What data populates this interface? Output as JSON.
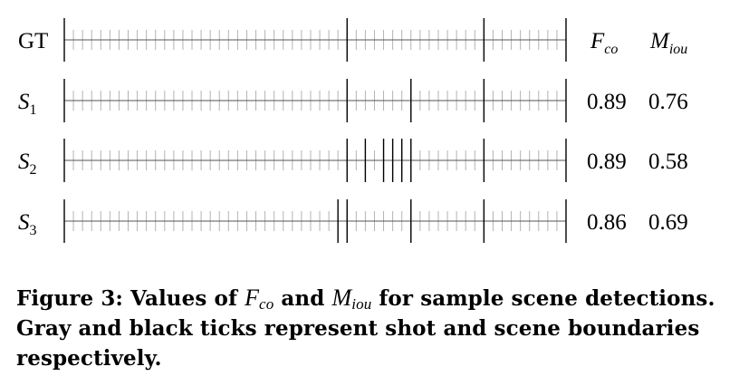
{
  "rows": [
    {
      "label": "GT",
      "label_base": "GT",
      "label_sub": "",
      "shots": 55,
      "scenes": [
        0,
        31,
        46,
        55
      ],
      "values": null
    },
    {
      "label": "S1",
      "label_base": "S",
      "label_sub": "1",
      "shots": 55,
      "scenes": [
        0,
        31,
        38,
        46,
        55
      ],
      "values": [
        "0.89",
        "0.76"
      ]
    },
    {
      "label": "S2",
      "label_base": "S",
      "label_sub": "2",
      "shots": 55,
      "scenes": [
        0,
        31,
        33,
        35,
        36,
        37,
        38,
        46,
        55
      ],
      "values": [
        "0.89",
        "0.58"
      ]
    },
    {
      "label": "S3",
      "label_base": "S",
      "label_sub": "3",
      "shots": 55,
      "scenes": [
        0,
        30,
        31,
        38,
        46,
        55
      ],
      "values": [
        "0.86",
        "0.69"
      ]
    }
  ],
  "headers": [
    {
      "base": "F",
      "sub": "co"
    },
    {
      "base": "M",
      "sub": "iou"
    }
  ],
  "caption": {
    "prefix": "Figure 3:  Values of ",
    "m1_base": "F",
    "m1_sub": "co",
    "mid": " and ",
    "m2_base": "M",
    "m2_sub": "iou",
    "suffix": " for sample scene detections. Gray and black ticks represent shot and scene boundaries respectively."
  },
  "colors": {
    "shot_tick": "#b3b3b3",
    "scene_tick": "#000000",
    "baseline": "#555555"
  }
}
